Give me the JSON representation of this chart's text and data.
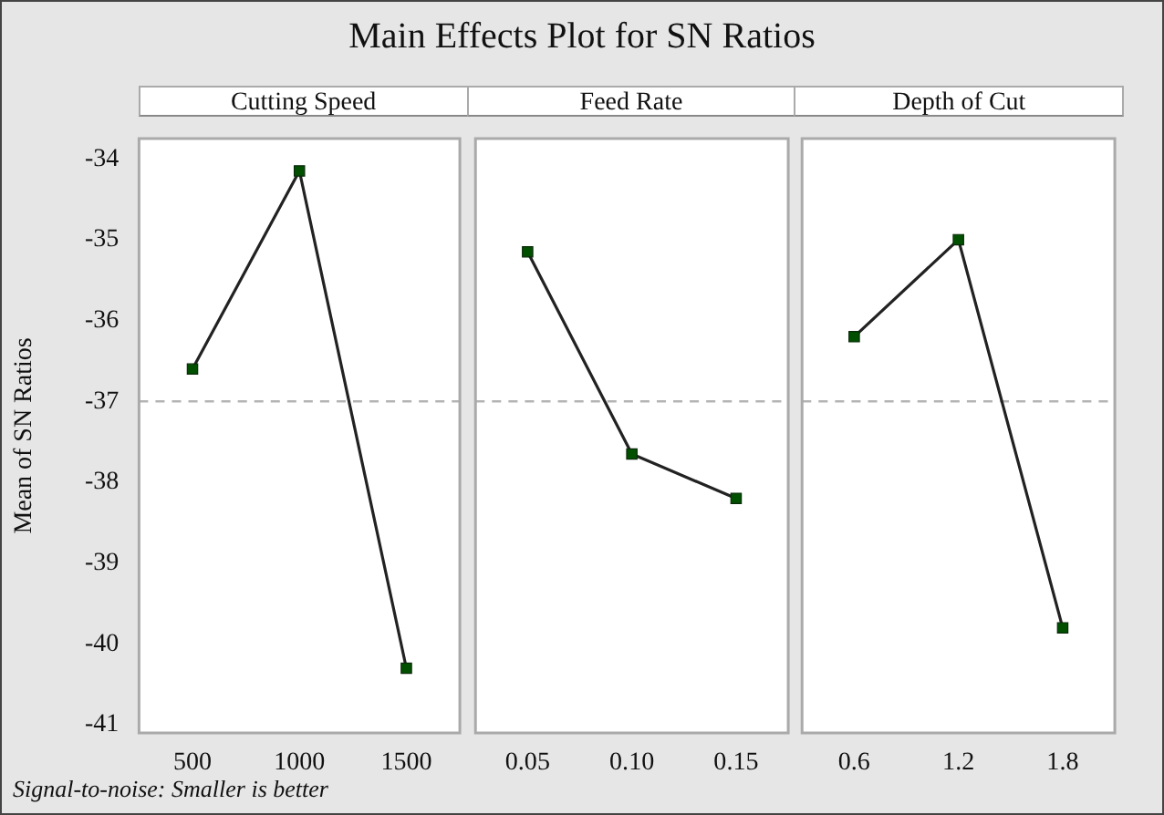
{
  "chart_data": [
    {
      "type": "line",
      "title": "Main Effects Plot for SN Ratios",
      "subtitle": "Cutting Speed",
      "ylabel": "Mean of SN Ratios",
      "annotations": [
        "Signal-to-noise: Smaller is better"
      ],
      "categories": [
        "500",
        "1000",
        "1500"
      ],
      "series": [
        {
          "color": "#222222",
          "values": [
            -36.6,
            -34.15,
            -40.3
          ]
        }
      ],
      "ylim": [
        -41.1,
        -33.75
      ],
      "yticks": [
        -41,
        -40,
        -39,
        -38,
        -37,
        -36,
        -35,
        -34
      ],
      "marker": "square",
      "line_style": "solid",
      "grid": false,
      "legend": false,
      "ref_lines": [
        {
          "axis": "y",
          "value": -37,
          "color": "#b4b4b4",
          "line_style": "dashed"
        }
      ]
    },
    {
      "type": "line",
      "subtitle": "Feed Rate",
      "categories": [
        "0.05",
        "0.10",
        "0.15"
      ],
      "series": [
        {
          "color": "#222222",
          "values": [
            -35.15,
            -37.65,
            -38.2
          ]
        }
      ],
      "ylim": [
        -41.1,
        -33.75
      ],
      "yticks": [
        -41,
        -40,
        -39,
        -38,
        -37,
        -36,
        -35,
        -34
      ],
      "tick_labels": "x",
      "marker": "square",
      "line_style": "solid",
      "grid": false,
      "legend": false,
      "ref_lines": [
        {
          "axis": "y",
          "value": -37,
          "color": "#b4b4b4",
          "line_style": "dashed"
        }
      ]
    },
    {
      "type": "line",
      "subtitle": "Depth of Cut",
      "categories": [
        "0.6",
        "1.2",
        "1.8"
      ],
      "series": [
        {
          "color": "#222222",
          "values": [
            -36.2,
            -35.0,
            -39.8
          ]
        }
      ],
      "ylim": [
        -41.1,
        -33.75
      ],
      "yticks": [
        -41,
        -40,
        -39,
        -38,
        -37,
        -36,
        -35,
        -34
      ],
      "tick_labels": "x",
      "marker": "square",
      "line_style": "solid",
      "grid": false,
      "legend": false,
      "ref_lines": [
        {
          "axis": "y",
          "value": -37,
          "color": "#b4b4b4",
          "line_style": "dashed"
        }
      ]
    }
  ]
}
